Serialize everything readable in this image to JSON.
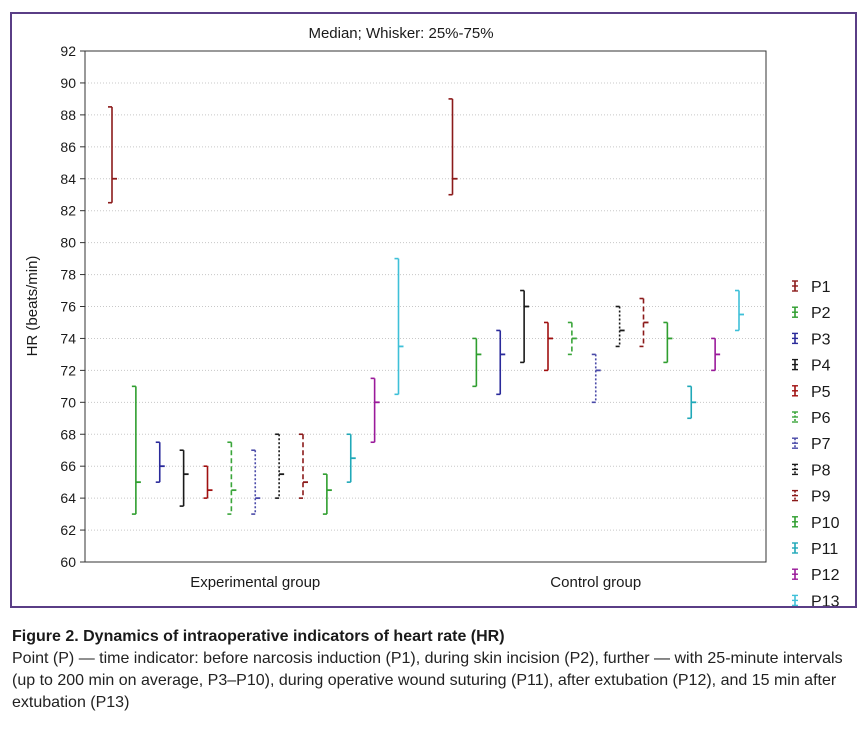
{
  "chart_data": {
    "type": "box-whisker",
    "title": "Median; Whisker: 25%-75%",
    "ylabel": "HR (beats/min)",
    "xlabel": "",
    "ylim": [
      60,
      92
    ],
    "yticks": [
      60,
      62,
      64,
      66,
      68,
      70,
      72,
      74,
      76,
      78,
      80,
      82,
      84,
      86,
      88,
      90,
      92
    ],
    "grid": true,
    "legend_position": "right",
    "groups": [
      "Experimental group",
      "Control group"
    ],
    "series": [
      {
        "name": "P1",
        "color": "#8b1a1a",
        "style": "solid",
        "values": [
          {
            "median": 84,
            "q1": 82.5,
            "q3": 88.5
          },
          {
            "median": 84,
            "q1": 83,
            "q3": 89
          }
        ]
      },
      {
        "name": "P2",
        "color": "#2f9e2f",
        "style": "solid",
        "values": [
          {
            "median": 65,
            "q1": 63,
            "q3": 71
          },
          {
            "median": 73,
            "q1": 71,
            "q3": 74
          }
        ]
      },
      {
        "name": "P3",
        "color": "#2a2a9a",
        "style": "solid",
        "values": [
          {
            "median": 66,
            "q1": 65,
            "q3": 67.5
          },
          {
            "median": 73,
            "q1": 70.5,
            "q3": 74.5
          }
        ]
      },
      {
        "name": "P4",
        "color": "#1a1a1a",
        "style": "solid",
        "values": [
          {
            "median": 65.5,
            "q1": 63.5,
            "q3": 67
          },
          {
            "median": 76,
            "q1": 72.5,
            "q3": 77
          }
        ]
      },
      {
        "name": "P5",
        "color": "#a01010",
        "style": "solid",
        "values": [
          {
            "median": 64.5,
            "q1": 64,
            "q3": 66
          },
          {
            "median": 74,
            "q1": 72,
            "q3": 75
          }
        ]
      },
      {
        "name": "P6",
        "color": "#3aa53a",
        "style": "dashed",
        "values": [
          {
            "median": 64.5,
            "q1": 63,
            "q3": 67.5
          },
          {
            "median": 74,
            "q1": 73,
            "q3": 75
          }
        ]
      },
      {
        "name": "P7",
        "color": "#4a4aa8",
        "style": "dotted",
        "values": [
          {
            "median": 64,
            "q1": 63,
            "q3": 67
          },
          {
            "median": 72,
            "q1": 70,
            "q3": 73
          }
        ]
      },
      {
        "name": "P8",
        "color": "#1a1a1a",
        "style": "dotted",
        "values": [
          {
            "median": 65.5,
            "q1": 64,
            "q3": 68
          },
          {
            "median": 74.5,
            "q1": 73.5,
            "q3": 76
          }
        ]
      },
      {
        "name": "P9",
        "color": "#8b1a1a",
        "style": "dashed",
        "values": [
          {
            "median": 65,
            "q1": 64,
            "q3": 68
          },
          {
            "median": 75,
            "q1": 73.5,
            "q3": 76.5
          }
        ]
      },
      {
        "name": "P10",
        "color": "#2f9e2f",
        "style": "solid",
        "values": [
          {
            "median": 64.5,
            "q1": 63,
            "q3": 65.5
          },
          {
            "median": 74,
            "q1": 72.5,
            "q3": 75
          }
        ]
      },
      {
        "name": "P11",
        "color": "#20a8b8",
        "style": "solid",
        "values": [
          {
            "median": 66.5,
            "q1": 65,
            "q3": 68
          },
          {
            "median": 70,
            "q1": 69,
            "q3": 71
          }
        ]
      },
      {
        "name": "P12",
        "color": "#9a1a9a",
        "style": "solid",
        "values": [
          {
            "median": 70,
            "q1": 67.5,
            "q3": 71.5
          },
          {
            "median": 73,
            "q1": 72,
            "q3": 74
          }
        ]
      },
      {
        "name": "P13",
        "color": "#3ec0d8",
        "style": "solid",
        "values": [
          {
            "median": 73.5,
            "q1": 70.5,
            "q3": 79
          },
          {
            "median": 75.5,
            "q1": 74.5,
            "q3": 77
          }
        ]
      }
    ]
  },
  "caption": {
    "title": "Figure 2. Dynamics of intraoperative indicators of heart rate (HR)",
    "body": "Point (P) — time indicator: before narcosis induction (P1), during skin incision (P2), further — with 25-minute intervals (up to 200 min on average, P3–P10), during operative wound suturing (P11), after extubation (P12), and 15 min after extubation (P13)"
  }
}
